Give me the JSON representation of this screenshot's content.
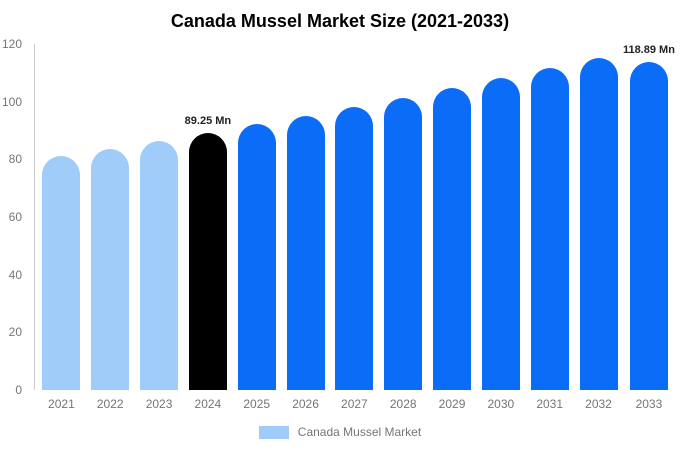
{
  "title": "Canada Mussel Market Size (2021-2033)",
  "legend": {
    "label": "Canada Mussel Market",
    "swatch_color": "#9fccf9"
  },
  "colors": {
    "light_blue": "#9fccf9",
    "blue": "#0b6cf7",
    "black": "#000000",
    "axis_line": "#cccccc",
    "tick_text": "#757575",
    "data_label_text": "#222222"
  },
  "chart_data": {
    "type": "bar",
    "title": "Canada Mussel Market Size (2021-2033)",
    "categories": [
      "2021",
      "2022",
      "2023",
      "2024",
      "2025",
      "2026",
      "2027",
      "2028",
      "2029",
      "2030",
      "2031",
      "2032",
      "2033"
    ],
    "values": [
      81.0,
      83.7,
      86.5,
      89.25,
      92.1,
      95.1,
      98.2,
      101.4,
      104.7,
      108.1,
      111.6,
      115.2,
      118.89
    ],
    "point_colors": [
      "#9fccf9",
      "#9fccf9",
      "#9fccf9",
      "#000000",
      "#0b6cf7",
      "#0b6cf7",
      "#0b6cf7",
      "#0b6cf7",
      "#0b6cf7",
      "#0b6cf7",
      "#0b6cf7",
      "#0b6cf7",
      "#0b6cf7"
    ],
    "data_labels": [
      null,
      null,
      null,
      "89.25 Mn",
      null,
      null,
      null,
      null,
      null,
      null,
      null,
      null,
      "118.89 Mn"
    ],
    "xlabel": "",
    "ylabel": "",
    "ylim": [
      0,
      120
    ],
    "yticks": [
      0,
      20,
      40,
      60,
      80,
      100,
      120
    ],
    "grid": false,
    "legend_entries": [
      "Canada Mussel Market"
    ],
    "legend_position": "bottom"
  }
}
